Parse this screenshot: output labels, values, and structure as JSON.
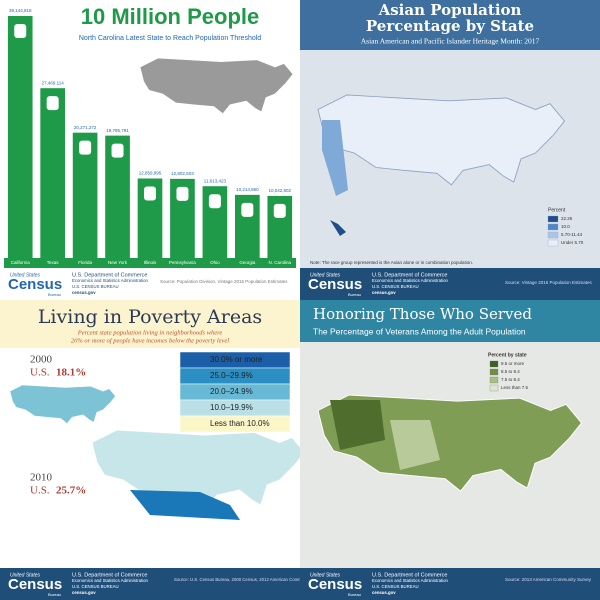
{
  "chart_data": {
    "type": "bar",
    "title": "10 Million People",
    "subtitle": "North Carolina Latest State to Reach Population Threshold",
    "categories": [
      "California",
      "Texas",
      "Florida",
      "New York",
      "Illinois",
      "Pennsylvania",
      "Ohio",
      "Georgia",
      "N. Carolina"
    ],
    "values": [
      39144818,
      27469114,
      20271272,
      19795791,
      12859995,
      12802503,
      11613423,
      10214860,
      10042802
    ],
    "value_labels": [
      "39,144,818",
      "27,469,114",
      "20,271,272",
      "19,795,791",
      "12,859,995",
      "12,802,503",
      "11,613,423",
      "10,214,860",
      "10,042,802"
    ],
    "color": "#1e9a48",
    "source": "Source: Population Division, Vintage 2015 Population Estimates"
  },
  "footer": {
    "logo_top": "United States",
    "logo_main": "Census",
    "logo_bottom": "Bureau",
    "line1": "U.S. Department of Commerce",
    "line2": "Economics and Statistics Administration",
    "line3": "U.S. CENSUS BUREAU",
    "line4": "census.gov"
  },
  "asian": {
    "title_line1": "Asian Population",
    "title_line2": "Percentage by State",
    "subtitle": "Asian American and Pacific Islander Heritage Month: 2017",
    "legend_title": "Percent",
    "legend": [
      "22.25",
      "10.0",
      "5.70-11.44",
      "Under 5.70"
    ],
    "note": "Note: The race group represented is the Asian alone or in combination population.",
    "source": "Source: Vintage 2015 Population Estimates"
  },
  "poverty": {
    "title": "Living in Poverty Areas",
    "subtitle_line1": "Percent state population living in neighborhoods where",
    "subtitle_line2": "20% or more of people have incomes below the poverty level",
    "legend": [
      "30.0% or more",
      "25.0–29.9%",
      "20.0–24.9%",
      "10.0–19.9%",
      "Less than 10.0%"
    ],
    "year1": "2000",
    "us1": "U.S.",
    "value1": "18.1%",
    "year2": "2010",
    "us2": "U.S.",
    "value2": "25.7%",
    "source": "Source: U.S. Census Bureau, 2000 Census, 2012 American Community Survey 5-year file"
  },
  "veterans": {
    "title": "Honoring Those Who Served",
    "subtitle": "The Percentage of Veterans Among the Adult Population",
    "legend_title": "Percent by state",
    "legend": [
      "9.5 or more",
      "8.5 to 9.4",
      "7.5 to 8.4",
      "Less than 7.5"
    ],
    "source": "Source: 2013 American Community Survey"
  }
}
